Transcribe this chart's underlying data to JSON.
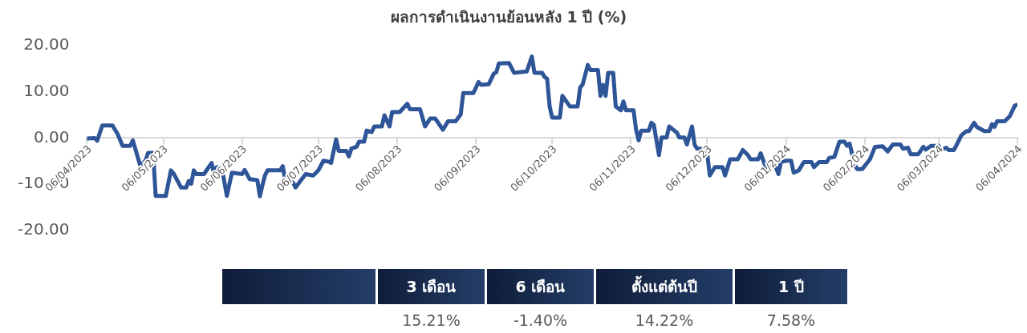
{
  "chart_data": [
    {
      "type": "line",
      "title": "ผลการดำเนินงานย้อนหลัง 1 ปี (%)",
      "x": [
        "2023-04-06",
        "2023-04-09",
        "2023-04-10",
        "2023-04-12",
        "2023-04-16",
        "2023-04-18",
        "2023-04-20",
        "2023-04-23",
        "2023-04-24",
        "2023-04-27",
        "2023-04-29",
        "2023-04-30",
        "2023-05-02",
        "2023-05-03",
        "2023-05-07",
        "2023-05-09",
        "2023-05-10",
        "2023-05-13",
        "2023-05-15",
        "2023-05-16",
        "2023-05-17",
        "2023-05-18",
        "2023-05-19",
        "2023-05-22",
        "2023-05-25",
        "2023-05-26",
        "2023-05-27",
        "2023-05-29",
        "2023-05-31",
        "2023-06-02",
        "2023-06-06",
        "2023-06-07",
        "2023-06-09",
        "2023-06-12",
        "2023-06-13",
        "2023-06-14",
        "2023-06-15",
        "2023-06-16",
        "2023-06-21",
        "2023-06-22",
        "2023-06-23",
        "2023-06-26",
        "2023-06-27",
        "2023-07-01",
        "2023-07-04",
        "2023-07-06",
        "2023-07-08",
        "2023-07-10",
        "2023-07-11",
        "2023-07-13",
        "2023-07-14",
        "2023-07-17",
        "2023-07-18",
        "2023-07-19",
        "2023-07-21",
        "2023-07-22",
        "2023-07-24",
        "2023-07-25",
        "2023-07-27",
        "2023-07-28",
        "2023-07-31",
        "2023-08-01",
        "2023-08-03",
        "2023-08-04",
        "2023-08-07",
        "2023-08-10",
        "2023-08-11",
        "2023-08-15",
        "2023-08-17",
        "2023-08-19",
        "2023-08-21",
        "2023-08-24",
        "2023-08-26",
        "2023-08-29",
        "2023-08-31",
        "2023-09-01",
        "2023-09-05",
        "2023-09-07",
        "2023-09-08",
        "2023-09-11",
        "2023-09-13",
        "2023-09-14",
        "2023-09-15",
        "2023-09-19",
        "2023-09-21",
        "2023-09-26",
        "2023-09-28",
        "2023-09-29",
        "2023-10-02",
        "2023-10-03",
        "2023-10-04",
        "2023-10-05",
        "2023-10-06",
        "2023-10-09",
        "2023-10-10",
        "2023-10-13",
        "2023-10-16",
        "2023-10-17",
        "2023-10-18",
        "2023-10-20",
        "2023-10-21",
        "2023-10-24",
        "2023-10-25",
        "2023-10-26",
        "2023-10-27",
        "2023-10-28",
        "2023-10-30",
        "2023-10-31",
        "2023-11-02",
        "2023-11-03",
        "2023-11-04",
        "2023-11-07",
        "2023-11-08",
        "2023-11-09",
        "2023-11-10",
        "2023-11-13",
        "2023-11-14",
        "2023-11-15",
        "2023-11-17",
        "2023-11-18",
        "2023-11-20",
        "2023-11-21",
        "2023-11-24",
        "2023-11-25",
        "2023-11-27",
        "2023-11-28",
        "2023-11-30",
        "2023-12-01",
        "2023-12-02",
        "2023-12-04",
        "2023-12-06",
        "2023-12-07",
        "2023-12-09",
        "2023-12-12",
        "2023-12-13",
        "2023-12-15",
        "2023-12-18",
        "2023-12-20",
        "2023-12-22",
        "2023-12-23",
        "2023-12-26",
        "2023-12-27",
        "2023-12-29",
        "2024-01-02",
        "2024-01-03",
        "2024-01-04",
        "2024-01-06",
        "2024-01-08",
        "2024-01-09",
        "2024-01-11",
        "2024-01-13",
        "2024-01-16",
        "2024-01-17",
        "2024-01-19",
        "2024-01-22",
        "2024-01-23",
        "2024-01-25",
        "2024-01-27",
        "2024-01-29",
        "2024-01-30",
        "2024-01-31",
        "2024-02-02",
        "2024-02-03",
        "2024-02-05",
        "2024-02-08",
        "2024-02-10",
        "2024-02-13",
        "2024-02-15",
        "2024-02-17",
        "2024-02-20",
        "2024-02-21",
        "2024-02-23",
        "2024-02-24",
        "2024-02-27",
        "2024-02-29",
        "2024-03-01",
        "2024-03-03",
        "2024-03-06",
        "2024-03-07",
        "2024-03-09",
        "2024-03-10",
        "2024-03-12",
        "2024-03-13",
        "2024-03-15",
        "2024-03-17",
        "2024-03-18",
        "2024-03-20",
        "2024-03-21",
        "2024-03-24",
        "2024-03-26",
        "2024-03-27",
        "2024-03-28",
        "2024-03-29",
        "2024-04-01",
        "2024-04-03",
        "2024-04-05",
        "2024-04-06"
      ],
      "series": [
        {
          "color": "#2e5597",
          "values": [
            -0.1,
            0.0,
            -0.6,
            2.7,
            2.7,
            0.9,
            -1.7,
            -1.7,
            -0.5,
            -6.1,
            -4.9,
            -3.2,
            -3.2,
            -12.5,
            -12.5,
            -7.0,
            -7.6,
            -10.7,
            -10.7,
            -9.3,
            -9.9,
            -7.0,
            -7.8,
            -7.8,
            -5.4,
            -7.8,
            -6.3,
            -6.3,
            -12.5,
            -7.5,
            -7.8,
            -6.9,
            -8.9,
            -9.1,
            -12.6,
            -10.2,
            -8.1,
            -7.0,
            -7.0,
            -6.1,
            -9.3,
            -9.6,
            -10.7,
            -7.8,
            -8.1,
            -7.0,
            -4.9,
            -5.1,
            -5.4,
            -0.3,
            -2.8,
            -2.8,
            -4.0,
            -2.3,
            -1.9,
            -0.8,
            -0.8,
            1.6,
            1.3,
            2.5,
            2.5,
            4.9,
            2.5,
            5.6,
            5.6,
            7.4,
            6.2,
            6.2,
            2.5,
            4.2,
            4.2,
            1.8,
            3.6,
            3.6,
            5.1,
            9.7,
            9.7,
            12.1,
            11.5,
            11.6,
            13.9,
            14.2,
            16.1,
            16.2,
            14.1,
            14.4,
            17.6,
            14.1,
            14.1,
            13.2,
            12.8,
            6.8,
            4.4,
            4.4,
            9.1,
            6.8,
            6.8,
            10.9,
            11.6,
            15.8,
            14.7,
            14.7,
            9.1,
            11.5,
            9.1,
            14.1,
            14.1,
            6.8,
            6.0,
            7.9,
            6.0,
            6.0,
            1.8,
            -0.5,
            1.6,
            1.6,
            3.3,
            2.8,
            -3.7,
            0.1,
            0.1,
            2.5,
            1.2,
            0.1,
            0.1,
            -1.4,
            2.5,
            -1.4,
            -2.3,
            -2.3,
            -3.5,
            -8.1,
            -6.3,
            -6.3,
            -8.1,
            -4.6,
            -4.6,
            -2.6,
            -3.7,
            -4.6,
            -4.6,
            -3.3,
            -6.3,
            -6.3,
            -7.8,
            -5.2,
            -4.9,
            -4.9,
            -7.5,
            -7.0,
            -5.2,
            -5.2,
            -6.3,
            -5.2,
            -5.2,
            -4.3,
            -4.1,
            -0.8,
            -0.8,
            -1.7,
            -1.2,
            -5.8,
            -6.7,
            -6.7,
            -4.6,
            -1.9,
            -1.8,
            -2.9,
            -1.4,
            -1.4,
            -2.3,
            -2.1,
            -3.5,
            -3.5,
            -1.9,
            -2.5,
            -1.7,
            -1.7,
            -2.6,
            -2.1,
            -2.6,
            -2.6,
            -1.6,
            0.6,
            1.5,
            1.5,
            3.3,
            2.4,
            1.5,
            1.5,
            3.0,
            2.4,
            3.6,
            3.6,
            4.7,
            7.0,
            7.2
          ]
        }
      ],
      "xlim": [
        "2023-04-06",
        "2024-04-06"
      ],
      "xticks": [
        {
          "value": "2023-04-06",
          "label": "06/04/2023"
        },
        {
          "value": "2023-05-06",
          "label": "06/05/2023"
        },
        {
          "value": "2023-06-06",
          "label": "06/06/2023"
        },
        {
          "value": "2023-07-06",
          "label": "06/07/2023"
        },
        {
          "value": "2023-08-06",
          "label": "06/08/2023"
        },
        {
          "value": "2023-09-06",
          "label": "06/09/2023"
        },
        {
          "value": "2023-10-06",
          "label": "06/10/2023"
        },
        {
          "value": "2023-11-06",
          "label": "06/11/2023"
        },
        {
          "value": "2023-12-06",
          "label": "06/12/2023"
        },
        {
          "value": "2024-01-06",
          "label": "06/01/2024"
        },
        {
          "value": "2024-02-06",
          "label": "06/02/2024"
        },
        {
          "value": "2024-03-06",
          "label": "06/03/2024"
        },
        {
          "value": "2024-04-06",
          "label": "06/04/2024"
        }
      ],
      "ylim": [
        -20,
        20
      ],
      "yticks": [
        {
          "value": -20,
          "label": "-20.00"
        },
        {
          "value": -10,
          "label": "-10.00"
        },
        {
          "value": 0,
          "label": "0.00"
        },
        {
          "value": 10,
          "label": "10.00"
        },
        {
          "value": 20,
          "label": "20.00"
        }
      ],
      "grid": false,
      "legend": false,
      "marker": "none",
      "line_style": "solid"
    },
    {
      "type": "other",
      "categories": [
        "3 เดือน",
        "6 เดือน",
        "ตั้งแต่ต้นปี",
        "1 ปี"
      ],
      "value_labels": [
        "15.21%",
        "-1.40%",
        "14.22%",
        "7.58%"
      ]
    }
  ]
}
